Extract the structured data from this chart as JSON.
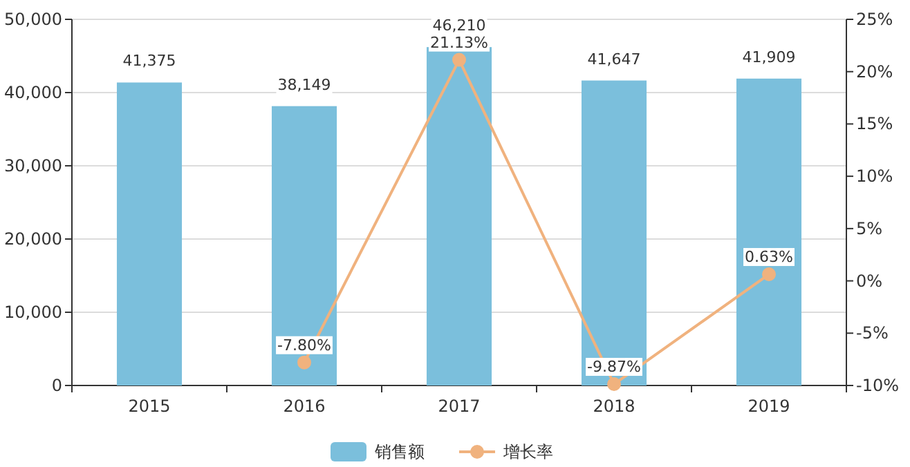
{
  "chart_data": {
    "type": "bar",
    "categories": [
      "2015",
      "2016",
      "2017",
      "2018",
      "2019"
    ],
    "series": [
      {
        "name": "销售额",
        "color": "#7bbfdc",
        "values": [
          41375,
          38149,
          46210,
          41647,
          41909
        ],
        "value_labels": [
          "41,375",
          "38,149",
          "46,210",
          "41,647",
          "41,909"
        ]
      },
      {
        "name": "增长率",
        "type": "line",
        "axis": "y2",
        "color": "#f0b27e",
        "marker": "circle",
        "values": [
          null,
          -7.8,
          21.13,
          -9.87,
          0.63
        ],
        "value_labels": [
          null,
          "-7.80%",
          "21.13%",
          "-9.87%",
          "0.63%"
        ]
      }
    ],
    "ylim": [
      0,
      50000
    ],
    "yticks": [
      0,
      {
        "value": 10000,
        "label": "10,000"
      },
      {
        "value": 20000,
        "label": "20,000"
      },
      {
        "value": 30000,
        "label": "30,000"
      },
      {
        "value": 40000,
        "label": "40,000"
      },
      {
        "value": 50000,
        "label": "50,000"
      }
    ],
    "y2lim": [
      -10,
      25
    ],
    "y2ticks": [
      {
        "value": -10,
        "label": "-10%"
      },
      {
        "value": -5,
        "label": "-5%"
      },
      {
        "value": 0,
        "label": "0%"
      },
      {
        "value": 5,
        "label": "5%"
      },
      {
        "value": 10,
        "label": "10%"
      },
      {
        "value": 15,
        "label": "15%"
      },
      {
        "value": 20,
        "label": "20%"
      },
      {
        "value": 25,
        "label": "25%"
      }
    ],
    "grid": "y",
    "legend": "bottom"
  }
}
